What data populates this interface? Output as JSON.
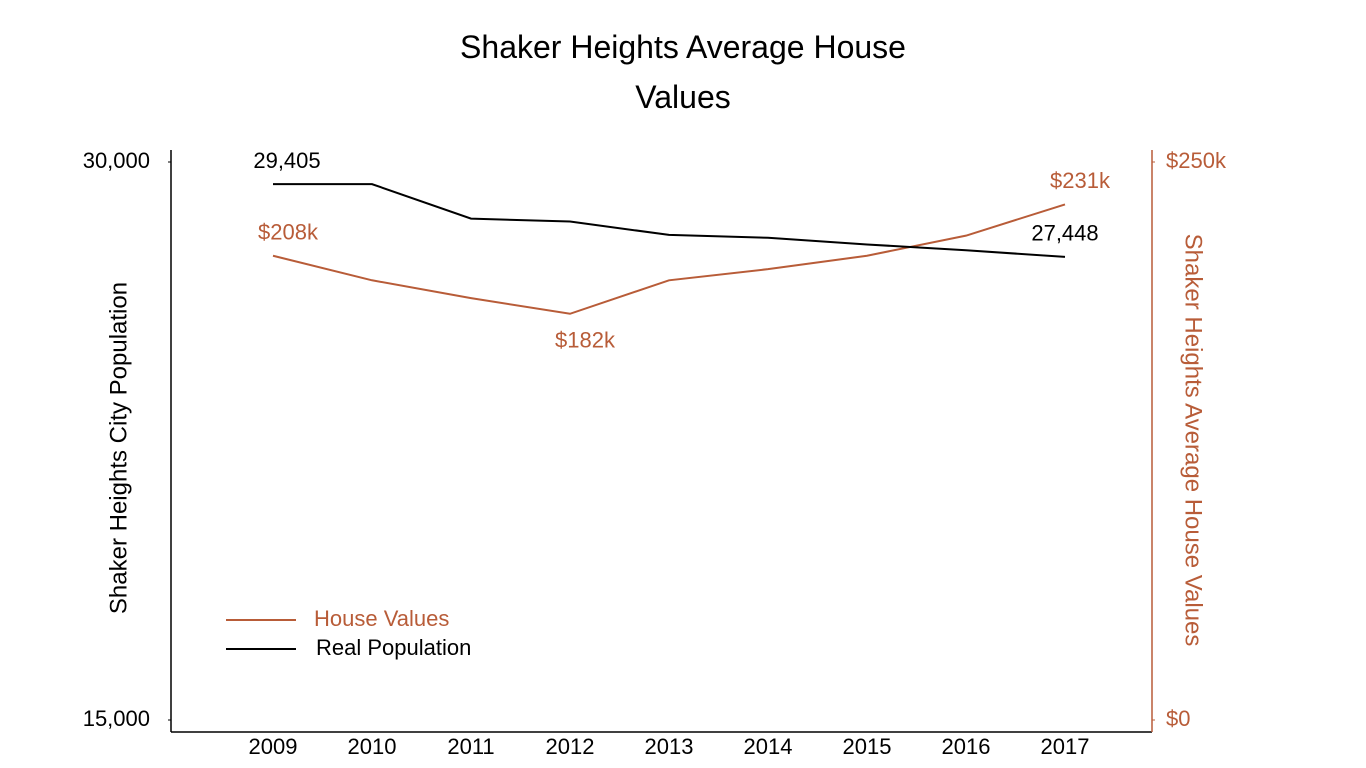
{
  "chart_data": {
    "type": "line",
    "title": "Shaker Heights Average House Values",
    "y_label": "Shaker Heights City Population",
    "y2_label": "Shaker Heights Average House Values",
    "categories": [
      "2009",
      "2010",
      "2011",
      "2012",
      "2013",
      "2014",
      "2015",
      "2016",
      "2017"
    ],
    "series": [
      {
        "name": "House Values",
        "color": "#b85c38",
        "axis": "y2",
        "values": [
          208000,
          197000,
          189000,
          182000,
          197000,
          202000,
          208000,
          217000,
          231000
        ],
        "value_labels": [
          "$208k",
          null,
          null,
          "$182k",
          null,
          null,
          null,
          null,
          "$231k"
        ]
      },
      {
        "name": "Real Population",
        "color": "#000000",
        "values": [
          29405,
          29405,
          28478,
          28400,
          28040,
          27963,
          27783,
          27628,
          27448
        ],
        "value_labels": [
          "29,405",
          null,
          null,
          null,
          null,
          null,
          null,
          null,
          "27,448"
        ]
      }
    ],
    "ylim": [
      15000,
      30000
    ],
    "yticks": [
      {
        "value": 15000,
        "label": "15,000"
      },
      {
        "value": 30000,
        "label": "30,000"
      }
    ],
    "y2lim": [
      0,
      250000
    ],
    "y2ticks": [
      {
        "value": 0,
        "label": "$0"
      },
      {
        "value": 250000,
        "label": "$250k"
      }
    ],
    "grid": false,
    "legend": "lower left"
  }
}
